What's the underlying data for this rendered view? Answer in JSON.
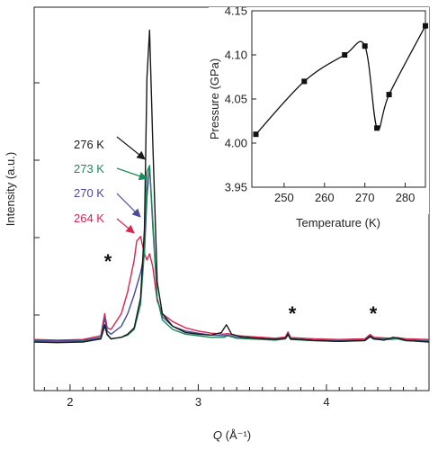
{
  "chart_data": [
    {
      "type": "line",
      "xlabel": "Q (Å⁻¹)",
      "xlabel_italic": "Q",
      "xlabel_unit": "(Å⁻¹)",
      "ylabel": "Intensity (a.u.)",
      "xlim": [
        1.72,
        4.8
      ],
      "ylim": [
        0,
        1.0
      ],
      "x_ticks": [
        2,
        3,
        4
      ],
      "grid": false,
      "legend": "inline labels with arrows, left of main peak",
      "series": [
        {
          "name": "276 K",
          "color": "#1a1a1a",
          "points": [
            [
              1.72,
              0.06
            ],
            [
              1.9,
              0.058
            ],
            [
              2.1,
              0.06
            ],
            [
              2.24,
              0.07
            ],
            [
              2.27,
              0.115
            ],
            [
              2.29,
              0.085
            ],
            [
              2.32,
              0.07
            ],
            [
              2.4,
              0.075
            ],
            [
              2.45,
              0.085
            ],
            [
              2.5,
              0.105
            ],
            [
              2.55,
              0.2
            ],
            [
              2.58,
              0.42
            ],
            [
              2.6,
              0.9
            ],
            [
              2.62,
              1.05
            ],
            [
              2.645,
              0.7
            ],
            [
              2.68,
              0.25
            ],
            [
              2.72,
              0.15
            ],
            [
              2.8,
              0.11
            ],
            [
              2.9,
              0.09
            ],
            [
              3.0,
              0.085
            ],
            [
              3.1,
              0.082
            ],
            [
              3.18,
              0.09
            ],
            [
              3.22,
              0.115
            ],
            [
              3.26,
              0.085
            ],
            [
              3.35,
              0.075
            ],
            [
              3.6,
              0.068
            ],
            [
              3.68,
              0.072
            ],
            [
              3.7,
              0.085
            ],
            [
              3.72,
              0.07
            ],
            [
              3.9,
              0.065
            ],
            [
              4.1,
              0.062
            ],
            [
              4.3,
              0.065
            ],
            [
              4.34,
              0.078
            ],
            [
              4.37,
              0.07
            ],
            [
              4.45,
              0.066
            ],
            [
              4.52,
              0.075
            ],
            [
              4.56,
              0.072
            ],
            [
              4.62,
              0.065
            ],
            [
              4.8,
              0.06
            ]
          ]
        },
        {
          "name": "273 K",
          "color": "#1b8a5a",
          "points": [
            [
              1.72,
              0.062
            ],
            [
              1.9,
              0.06
            ],
            [
              2.1,
              0.062
            ],
            [
              2.24,
              0.07
            ],
            [
              2.27,
              0.11
            ],
            [
              2.29,
              0.082
            ],
            [
              2.32,
              0.07
            ],
            [
              2.4,
              0.075
            ],
            [
              2.45,
              0.082
            ],
            [
              2.5,
              0.1
            ],
            [
              2.55,
              0.18
            ],
            [
              2.58,
              0.35
            ],
            [
              2.6,
              0.6
            ],
            [
              2.62,
              0.62
            ],
            [
              2.645,
              0.45
            ],
            [
              2.68,
              0.2
            ],
            [
              2.72,
              0.13
            ],
            [
              2.8,
              0.1
            ],
            [
              2.9,
              0.085
            ],
            [
              3.0,
              0.08
            ],
            [
              3.1,
              0.075
            ],
            [
              3.2,
              0.075
            ],
            [
              3.23,
              0.08
            ],
            [
              3.3,
              0.072
            ],
            [
              3.6,
              0.066
            ],
            [
              3.68,
              0.07
            ],
            [
              3.7,
              0.082
            ],
            [
              3.72,
              0.068
            ],
            [
              3.9,
              0.064
            ],
            [
              4.1,
              0.062
            ],
            [
              4.3,
              0.064
            ],
            [
              4.34,
              0.076
            ],
            [
              4.37,
              0.069
            ],
            [
              4.5,
              0.068
            ],
            [
              4.55,
              0.07
            ],
            [
              4.62,
              0.064
            ],
            [
              4.8,
              0.062
            ]
          ]
        },
        {
          "name": "270 K",
          "color": "#4a4a9e",
          "points": [
            [
              1.72,
              0.065
            ],
            [
              1.9,
              0.063
            ],
            [
              2.1,
              0.065
            ],
            [
              2.24,
              0.075
            ],
            [
              2.27,
              0.135
            ],
            [
              2.29,
              0.095
            ],
            [
              2.32,
              0.085
            ],
            [
              2.4,
              0.11
            ],
            [
              2.45,
              0.15
            ],
            [
              2.5,
              0.21
            ],
            [
              2.55,
              0.28
            ],
            [
              2.58,
              0.34
            ],
            [
              2.6,
              0.52
            ],
            [
              2.62,
              0.62
            ],
            [
              2.645,
              0.43
            ],
            [
              2.68,
              0.2
            ],
            [
              2.72,
              0.14
            ],
            [
              2.8,
              0.11
            ],
            [
              2.9,
              0.095
            ],
            [
              3.0,
              0.088
            ],
            [
              3.1,
              0.082
            ],
            [
              3.2,
              0.08
            ],
            [
              3.23,
              0.082
            ],
            [
              3.3,
              0.075
            ],
            [
              3.6,
              0.068
            ],
            [
              3.68,
              0.072
            ],
            [
              3.7,
              0.088
            ],
            [
              3.72,
              0.07
            ],
            [
              3.9,
              0.066
            ],
            [
              4.1,
              0.064
            ],
            [
              4.3,
              0.066
            ],
            [
              4.34,
              0.08
            ],
            [
              4.37,
              0.071
            ],
            [
              4.5,
              0.07
            ],
            [
              4.55,
              0.072
            ],
            [
              4.62,
              0.066
            ],
            [
              4.8,
              0.064
            ]
          ]
        },
        {
          "name": "264 K",
          "color": "#d6264f",
          "points": [
            [
              1.72,
              0.068
            ],
            [
              1.9,
              0.066
            ],
            [
              2.1,
              0.068
            ],
            [
              2.24,
              0.08
            ],
            [
              2.27,
              0.15
            ],
            [
              2.29,
              0.105
            ],
            [
              2.32,
              0.1
            ],
            [
              2.4,
              0.15
            ],
            [
              2.45,
              0.22
            ],
            [
              2.5,
              0.32
            ],
            [
              2.52,
              0.38
            ],
            [
              2.55,
              0.395
            ],
            [
              2.58,
              0.34
            ],
            [
              2.6,
              0.32
            ],
            [
              2.62,
              0.34
            ],
            [
              2.645,
              0.3
            ],
            [
              2.68,
              0.19
            ],
            [
              2.72,
              0.15
            ],
            [
              2.8,
              0.125
            ],
            [
              2.9,
              0.105
            ],
            [
              3.0,
              0.095
            ],
            [
              3.1,
              0.088
            ],
            [
              3.2,
              0.085
            ],
            [
              3.23,
              0.087
            ],
            [
              3.3,
              0.08
            ],
            [
              3.6,
              0.072
            ],
            [
              3.68,
              0.076
            ],
            [
              3.7,
              0.092
            ],
            [
              3.72,
              0.074
            ],
            [
              3.9,
              0.07
            ],
            [
              4.1,
              0.068
            ],
            [
              4.3,
              0.07
            ],
            [
              4.34,
              0.084
            ],
            [
              4.37,
              0.075
            ],
            [
              4.5,
              0.072
            ],
            [
              4.55,
              0.074
            ],
            [
              4.62,
              0.07
            ],
            [
              4.8,
              0.068
            ]
          ]
        }
      ],
      "annotations": [
        "*",
        "*",
        "*"
      ]
    },
    {
      "type": "line",
      "xlabel": "Temperature (K)",
      "ylabel": "Pressure (GPa)",
      "xlim": [
        242,
        285
      ],
      "ylim": [
        3.95,
        4.15
      ],
      "x_ticks": [
        250,
        260,
        270,
        280
      ],
      "y_ticks": [
        "3.95",
        "4.00",
        "4.05",
        "4.10",
        "4.15"
      ],
      "grid": false,
      "series": [
        {
          "x": [
            243,
            255,
            265,
            270,
            273,
            276,
            285
          ],
          "y": [
            4.01,
            4.07,
            4.1,
            4.11,
            4.017,
            4.055,
            4.133
          ]
        }
      ]
    }
  ]
}
